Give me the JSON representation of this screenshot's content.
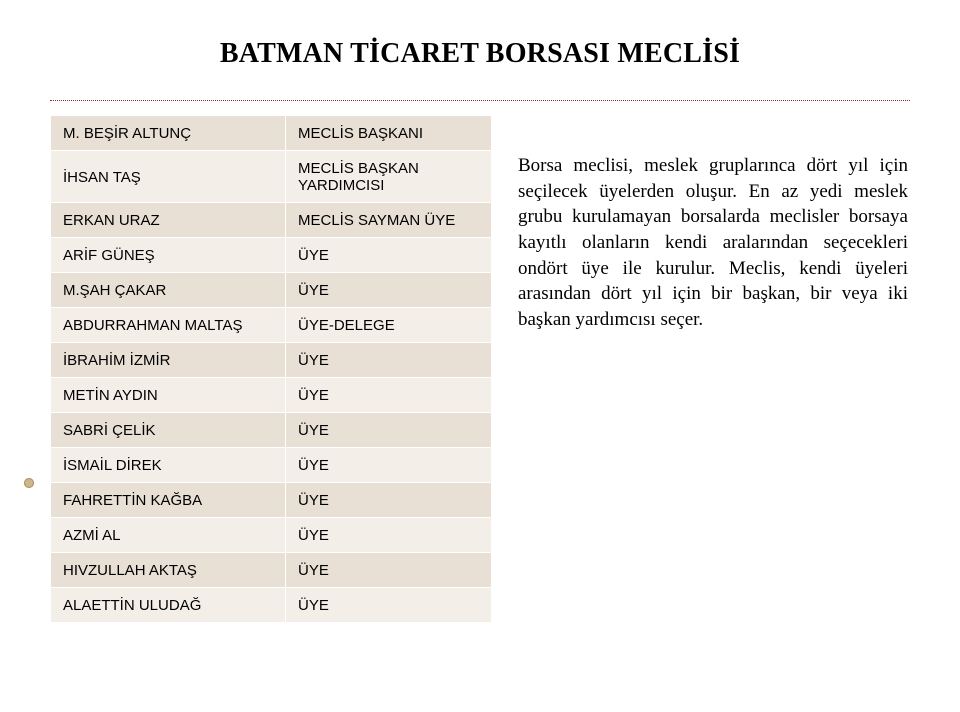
{
  "title": "BATMAN TİCARET BORSASI MECLİSİ",
  "members": [
    {
      "name": "M. BEŞİR ALTUNÇ",
      "role": "MECLİS BAŞKANI"
    },
    {
      "name": "İHSAN TAŞ",
      "role": "MECLİS BAŞKAN YARDIMCISI"
    },
    {
      "name": "ERKAN URAZ",
      "role": "MECLİS SAYMAN ÜYE"
    },
    {
      "name": "ARİF GÜNEŞ",
      "role": "ÜYE"
    },
    {
      "name": "M.ŞAH ÇAKAR",
      "role": "ÜYE"
    },
    {
      "name": "ABDURRAHMAN MALTAŞ",
      "role": "ÜYE-DELEGE"
    },
    {
      "name": "İBRAHİM İZMİR",
      "role": "ÜYE"
    },
    {
      "name": "METİN AYDIN",
      "role": "ÜYE"
    },
    {
      "name": "SABRİ ÇELİK",
      "role": "ÜYE"
    },
    {
      "name": "İSMAİL DİREK",
      "role": "ÜYE"
    },
    {
      "name": "FAHRETTİN KAĞBA",
      "role": "ÜYE"
    },
    {
      "name": "AZMİ AL",
      "role": "ÜYE"
    },
    {
      "name": "HIVZULLAH AKTAŞ",
      "role": "ÜYE"
    },
    {
      "name": "ALAETTİN ULUDAĞ",
      "role": "ÜYE"
    }
  ],
  "paragraph": "Borsa meclisi, meslek gruplarınca dört yıl için seçilecek üyelerden oluşur. En az yedi meslek grubu kurulamayan borsalarda meclisler borsaya kayıtlı olanların kendi aralarından seçecekleri ondört üye ile kurulur. Meclis, kendi üyeleri arasından dört yıl için bir başkan, bir veya iki başkan yardımcısı seçer.",
  "style": {
    "page_bg": "#ffffff",
    "title_color": "#000000",
    "title_fontsize": 28,
    "hr_color": "#9b2727",
    "row_alt_a": "#e8dfd5",
    "row_alt_b": "#f4eee8",
    "table_border_color": "#ffffff",
    "table_fontsize": 15,
    "paragraph_fontsize": 19,
    "bullet_fill": "#cfb68a",
    "bullet_border": "#a98f65"
  }
}
